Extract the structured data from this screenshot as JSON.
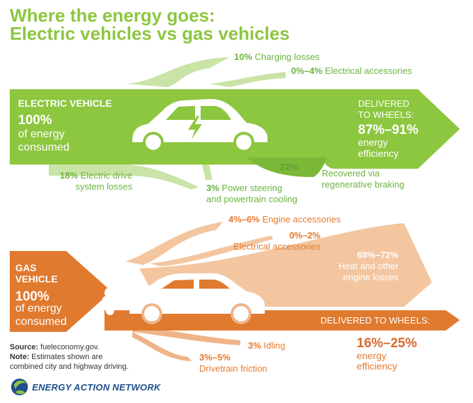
{
  "title": {
    "line1": "Where the energy goes:",
    "line2": "Electric vehicles vs gas vehicles"
  },
  "colors": {
    "ev_green": "#8dc63f",
    "ev_light": "#c9e4a6",
    "gas_orange": "#e07a2f",
    "gas_light": "#f3c6a0",
    "text_green": "#6cb33f",
    "text_orange": "#e47a2e",
    "logo_blue": "#1e4e8c"
  },
  "electric": {
    "label": "ELECTRIC VEHICLE",
    "consumed_pct": "100%",
    "consumed_line1": "of energy",
    "consumed_line2": "consumed",
    "delivered_label_line1": "DELIVERED",
    "delivered_label_line2": "TO WHEELS:",
    "efficiency_pct": "87%–91%",
    "efficiency_line1": "energy",
    "efficiency_line2": "efficiency",
    "losses": [
      {
        "pct": "10%",
        "label": "Charging losses"
      },
      {
        "pct": "0%–4%",
        "label": "Electrical accessories"
      },
      {
        "pct": "18%",
        "label_line1": "Electric drive",
        "label_line2": "system losses"
      },
      {
        "pct": "3%",
        "label_line1": "Power steering",
        "label_line2": "and powertrain cooling"
      }
    ],
    "regen": {
      "pct": "22%",
      "label_line1": "Recovered via",
      "label_line2": "regenerative braking"
    }
  },
  "gas": {
    "label_line1": "GAS",
    "label_line2": "VEHICLE",
    "consumed_pct": "100%",
    "consumed_line1": "of energy",
    "consumed_line2": "consumed",
    "delivered_label": "DELIVERED TO WHEELS:",
    "efficiency_pct": "16%–25%",
    "efficiency_line1": "energy",
    "efficiency_line2": "efficiency",
    "losses": [
      {
        "pct": "4%–6%",
        "label": "Engine accessories"
      },
      {
        "pct": "0%–2%",
        "label": "Electrical accessories"
      },
      {
        "pct": "68%–72%",
        "label_line1": "Heat and other",
        "label_line2": "engine losses"
      },
      {
        "pct": "3%",
        "label": "Idling"
      },
      {
        "pct": "3%–5%",
        "label": "Drivetrain friction"
      }
    ]
  },
  "footer": {
    "source_label": "Source:",
    "source_text": "fueleconomy.gov.",
    "note_label": "Note:",
    "note_line1": "Estimates shown are",
    "note_line2": "combined city and highway driving."
  },
  "logo": {
    "text": "ENERGY ACTION NETWORK",
    "icon": "globe-leaf-icon"
  },
  "icons": {
    "ev_car": "electric-car-icon",
    "lightning": "lightning-bolt-icon",
    "gas_car": "gas-car-icon",
    "exhaust": "exhaust-smoke-icon"
  }
}
